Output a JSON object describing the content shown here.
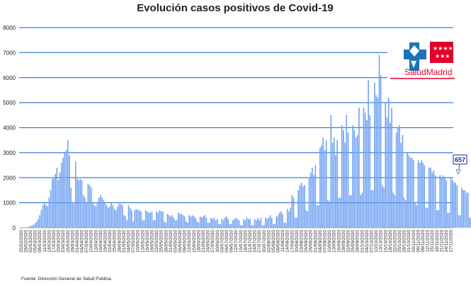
{
  "chart_data": {
    "type": "bar",
    "title": "Evolución casos positivos de Covid-19",
    "xlabel": "",
    "ylabel": "",
    "ylim": [
      0,
      8000
    ],
    "yticks": [
      0,
      1000,
      2000,
      3000,
      4000,
      5000,
      6000,
      7000,
      8000
    ],
    "grid": true,
    "x_start_date": "2020-02-25",
    "x_tick_labels": [
      "25/02/2020",
      "28/02/2020",
      "02/03/2020",
      "05/03/2020",
      "08/03/2020",
      "11/03/2020",
      "14/03/2020",
      "17/03/2020",
      "20/03/2020",
      "23/03/2020",
      "26/03/2020",
      "29/03/2020",
      "01/04/2020",
      "04/04/2020",
      "07/04/2020",
      "10/04/2020",
      "13/04/2020",
      "16/04/2020",
      "19/04/2020",
      "22/04/2020",
      "25/04/2020",
      "28/04/2020",
      "01/05/2020",
      "04/05/2020",
      "07/05/2020",
      "10/05/2020",
      "13/05/2020",
      "16/05/2020",
      "19/05/2020",
      "22/05/2020",
      "25/05/2020",
      "28/05/2020",
      "31/05/2020",
      "03/06/2020",
      "06/06/2020",
      "09/06/2020",
      "12/06/2020",
      "15/06/2020",
      "18/06/2020",
      "21/06/2020",
      "24/06/2020",
      "27/06/2020",
      "30/06/2020",
      "03/07/2020",
      "06/07/2020",
      "09/07/2020",
      "12/07/2020",
      "15/07/2020",
      "18/07/2020",
      "21/07/2020",
      "24/07/2020",
      "27/07/2020",
      "30/07/2020",
      "02/08/2020",
      "05/08/2020",
      "08/08/2020",
      "11/08/2020",
      "14/08/2020",
      "17/08/2020",
      "20/08/2020",
      "23/08/2020",
      "26/08/2020",
      "29/08/2020",
      "01/09/2020",
      "04/09/2020",
      "07/09/2020",
      "10/09/2020",
      "13/09/2020",
      "16/09/2020",
      "19/09/2020",
      "22/09/2020",
      "25/09/2020",
      "28/09/2020",
      "01/10/2020",
      "04/10/2020",
      "07/10/2020",
      "10/10/2020",
      "13/10/2020",
      "16/10/2020",
      "19/10/2020",
      "22/10/2020",
      "25/10/2020",
      "28/10/2020",
      "31/10/2020",
      "03/11/2020",
      "06/11/2020",
      "09/11/2020",
      "12/11/2020",
      "15/11/2020",
      "18/11/2020",
      "21/11/2020",
      "24/11/2020",
      "27/11/2020"
    ],
    "values": [
      0,
      2,
      5,
      10,
      20,
      40,
      60,
      80,
      120,
      180,
      250,
      350,
      500,
      700,
      900,
      1000,
      900,
      850,
      1200,
      1500,
      1950,
      2000,
      2150,
      2400,
      1900,
      2200,
      2600,
      2800,
      3000,
      3100,
      3500,
      2900,
      1600,
      1000,
      950,
      2650,
      1950,
      1900,
      1950,
      1900,
      1300,
      1200,
      1000,
      1750,
      1700,
      1600,
      1000,
      900,
      850,
      1000,
      1200,
      1300,
      1200,
      1100,
      1000,
      900,
      800,
      850,
      1000,
      900,
      750,
      700,
      850,
      950,
      950,
      900,
      500,
      450,
      300,
      900,
      800,
      700,
      250,
      700,
      750,
      700,
      700,
      650,
      300,
      300,
      700,
      650,
      600,
      600,
      650,
      300,
      300,
      650,
      600,
      700,
      650,
      650,
      250,
      200,
      550,
      500,
      450,
      500,
      400,
      300,
      300,
      600,
      550,
      550,
      500,
      450,
      250,
      200,
      500,
      450,
      500,
      450,
      400,
      250,
      200,
      450,
      400,
      450,
      500,
      400,
      200,
      200,
      400,
      350,
      400,
      300,
      350,
      150,
      150,
      350,
      300,
      400,
      450,
      350,
      150,
      150,
      300,
      350,
      400,
      350,
      300,
      100,
      100,
      350,
      300,
      400,
      350,
      350,
      100,
      100,
      350,
      300,
      400,
      300,
      400,
      100,
      100,
      400,
      350,
      400,
      500,
      400,
      150,
      150,
      450,
      500,
      600,
      650,
      550,
      200,
      200,
      750,
      650,
      800,
      1300,
      1200,
      400,
      400,
      1500,
      1700,
      1800,
      1650,
      1700,
      700,
      650,
      2000,
      2200,
      2400,
      2100,
      2500,
      900,
      900,
      3200,
      3300,
      3600,
      3100,
      3500,
      1100,
      1050,
      4500,
      3400,
      3600,
      2900,
      3500,
      1200,
      1200,
      4100,
      3900,
      3400,
      4500,
      3800,
      1300,
      1300,
      4100,
      3900,
      3600,
      3700,
      4800,
      1300,
      1400,
      4800,
      4600,
      4300,
      5900,
      4500,
      1500,
      1500,
      5800,
      5300,
      5200,
      6900,
      6100,
      1700,
      1600,
      5000,
      4400,
      5200,
      4200,
      4800,
      1400,
      1300,
      3800,
      4000,
      4100,
      3400,
      3700,
      1200,
      1100,
      3000,
      2900,
      2800,
      2800,
      2700,
      1000,
      900,
      2700,
      2600,
      2700,
      2600,
      2500,
      800,
      800,
      2400,
      2400,
      2200,
      2300,
      2100,
      700,
      700,
      2100,
      2000,
      2100,
      2000,
      1900,
      600,
      600,
      2000,
      1900,
      1800,
      1800,
      1700,
      500,
      500,
      1600,
      1500,
      1500,
      1400,
      1400,
      400,
      400,
      1200,
      1200,
      1100,
      1100,
      1000,
      300,
      300,
      900,
      850,
      800,
      700,
      657
    ],
    "annotation_text": "657",
    "source_text": "Fuente: Dirección General de Salud Pública.",
    "logo_text": "SaludMadrid"
  },
  "colors": {
    "bar": "#6da0f2",
    "grid": "#3a7fd5",
    "axis": "#888888",
    "logo_blue": "#1c73b8",
    "logo_red": "#e4002b",
    "callout_border": "#1f2f8c"
  }
}
